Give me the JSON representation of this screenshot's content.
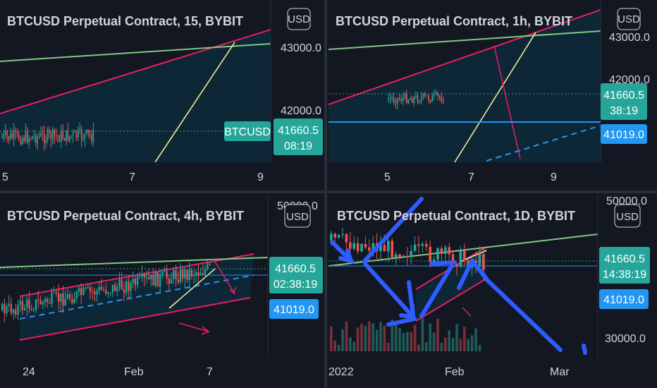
{
  "colors": {
    "background": "#131722",
    "grid": "#2a2e39",
    "divider": "#2a2e39",
    "up_candle": "#26a69a",
    "down_candle": "#ef5350",
    "pink_line": "#e91e63",
    "green_line": "#81c784",
    "yellow_line": "#fff59d",
    "blue_line": "#2196f3",
    "channel_fill": "#0e2a3a",
    "price_tag_green": "#26a69a",
    "price_tag_blue": "#2196f3",
    "arrow_blue": "#2f5cff"
  },
  "panels": [
    {
      "title": "BTCUSD Perpetual Contract, 15, BYBIT",
      "currency": "USD",
      "price_labels": [
        "43000.0",
        "42000.0"
      ],
      "last_price": "41660.5",
      "countdown": "08:19",
      "symbol_tag": "BTCUSD",
      "x_labels": [
        "5",
        "7",
        "9"
      ]
    },
    {
      "title": "BTCUSD Perpetual Contract, 1h, BYBIT",
      "currency": "USD",
      "price_labels": [
        "43000.0",
        "42000.0"
      ],
      "last_price": "41660.5",
      "countdown": "38:19",
      "level_price": "41019.0",
      "x_labels": [
        "5",
        "7",
        "9"
      ]
    },
    {
      "title": "BTCUSD Perpetual Contract, 4h, BYBIT",
      "currency": "USD",
      "price_labels": [
        "50000.0"
      ],
      "last_price": "41660.5",
      "countdown": "02:38:19",
      "level_price": "41019.0",
      "x_labels": [
        "24",
        "Feb",
        "7"
      ]
    },
    {
      "title": "BTCUSD Perpetual Contract, 1D, BYBIT",
      "currency": "USD",
      "price_labels": [
        "50000.0",
        "30000.0"
      ],
      "last_price": "41660.5",
      "countdown": "14:38:19",
      "level_price": "41019.0",
      "x_labels": [
        "2022",
        "Feb",
        "Mar"
      ]
    }
  ]
}
